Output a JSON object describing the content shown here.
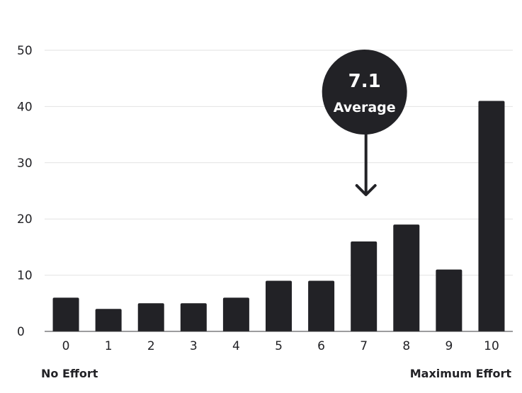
{
  "chart_data": {
    "type": "bar",
    "categories": [
      "0",
      "1",
      "2",
      "3",
      "4",
      "5",
      "6",
      "7",
      "8",
      "9",
      "10"
    ],
    "values": [
      6,
      4,
      5,
      5,
      6,
      9,
      9,
      16,
      19,
      11,
      41
    ],
    "ylim": [
      0,
      50
    ],
    "yticks": [
      0,
      10,
      20,
      30,
      40,
      50
    ],
    "grid": true,
    "bar_color": "#222226",
    "grid_color": "#e2e2e2",
    "annotation": {
      "value": "7.1",
      "label": "Average",
      "points_to_category": "7"
    },
    "scale_labels": {
      "low": "No Effort",
      "high": "Maximum Effort"
    }
  }
}
